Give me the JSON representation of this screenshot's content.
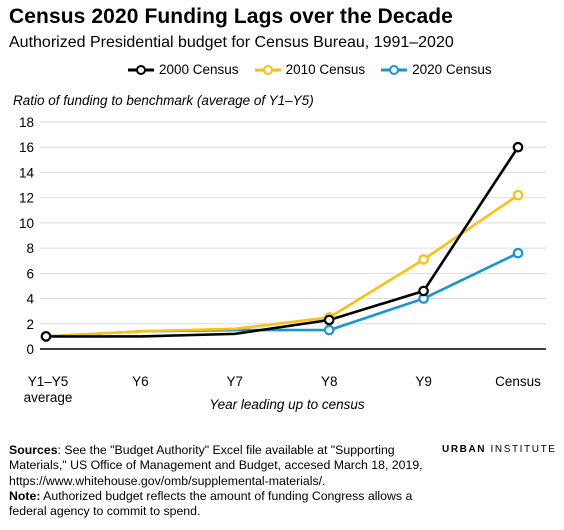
{
  "title": "Census 2020 Funding Lags over the Decade",
  "subtitle": "Authorized Presidential budget for Census Bureau, 1991–2020",
  "colors": {
    "2000 Census": "#000000",
    "2010 Census": "#fdbf11",
    "2020 Census": "#1696d2",
    "grid": "#dedede"
  },
  "chart_data": {
    "type": "line",
    "categories": [
      "Y1–Y5 average",
      "Y6",
      "Y7",
      "Y8",
      "Y9",
      "Census"
    ],
    "category_lines": [
      [
        "Y1–Y5",
        "average"
      ],
      [
        "Y6"
      ],
      [
        "Y7"
      ],
      [
        "Y8"
      ],
      [
        "Y9"
      ],
      [
        "Census"
      ]
    ],
    "series": [
      {
        "name": "2000 Census",
        "color": "#000000",
        "values": [
          1.0,
          1.0,
          1.2,
          2.3,
          4.6,
          16.0
        ]
      },
      {
        "name": "2010 Census",
        "color": "#fdbf11",
        "values": [
          1.0,
          1.4,
          1.6,
          2.5,
          7.1,
          12.2
        ]
      },
      {
        "name": "2020 Census",
        "color": "#1696d2",
        "values": [
          1.0,
          1.4,
          1.5,
          1.5,
          4.0,
          7.6
        ]
      }
    ],
    "ylabel": "Ratio of funding to benchmark (average of Y1–Y5)",
    "xlabel": "Year leading up to census",
    "ylim": [
      0,
      18
    ],
    "yticks": [
      0,
      2,
      4,
      6,
      8,
      10,
      12,
      14,
      16,
      18
    ],
    "grid": "horizontal",
    "legend": "top"
  },
  "notes": {
    "sources_label": "Sources",
    "sources_text": ": See the \"Budget Authority\" Excel file available at \"Supporting Materials,\" US Office of Management and Budget, accesed March 18, 2019, https://www.whitehouse.gov/omb/supplemental-materials/.",
    "note_label": "Note:",
    "note_text": " Authorized budget reflects the amount of funding Congress allows a federal agency to commit to spend."
  },
  "brand": {
    "part1": "URBAN",
    "part2": " INSTITUTE"
  }
}
